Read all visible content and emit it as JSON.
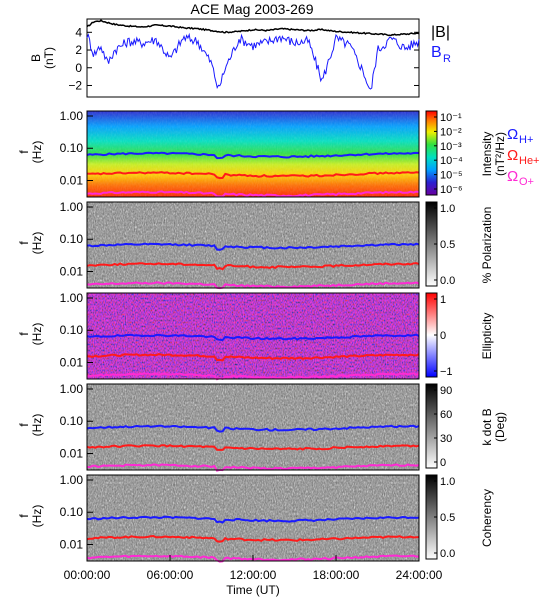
{
  "title": "ACE Mag 2003-269",
  "colors": {
    "total_field": "#000000",
    "radial_field": "#1a1aff",
    "omega_h": "#1a1aff",
    "omega_he": "#ff1a1a",
    "omega_o": "#ff2ad4"
  },
  "chart_data": [
    {
      "type": "line",
      "ylabel": [
        "B",
        "(nT)"
      ],
      "ylim": [
        -3.3,
        5.5
      ],
      "yticks": [
        "4",
        "2",
        "0",
        "−2"
      ],
      "ytick_values": [
        4,
        2,
        0,
        -2
      ],
      "xlim": [
        0,
        24
      ],
      "legend": [
        "|B|",
        "B",
        "R"
      ],
      "series": [
        {
          "name": "|B|",
          "color": "#000000",
          "x": [
            0,
            0.5,
            1,
            1.5,
            2,
            3,
            4,
            5,
            6,
            7,
            8,
            9,
            10,
            11,
            12,
            13,
            14,
            15,
            16,
            17,
            18,
            19,
            20,
            21,
            22,
            23,
            24
          ],
          "values": [
            4.6,
            5.2,
            5.3,
            5.1,
            4.9,
            4.7,
            4.6,
            4.8,
            4.7,
            4.5,
            4.4,
            4.2,
            4.0,
            4.1,
            4.3,
            4.2,
            4.4,
            4.3,
            4.2,
            4.3,
            4.1,
            4.0,
            3.9,
            3.8,
            3.7,
            3.8,
            3.9
          ]
        },
        {
          "name": "B_R",
          "color": "#1a1aff",
          "x": [
            0,
            0.5,
            1,
            1.5,
            2,
            3,
            4,
            5,
            6,
            7,
            8,
            9,
            9.5,
            10,
            11,
            12,
            13,
            14,
            15,
            16,
            17,
            18,
            19,
            20,
            20.5,
            21,
            22,
            23,
            24
          ],
          "values": [
            3.8,
            1.5,
            2.5,
            0.5,
            2.0,
            3.0,
            2.8,
            3.2,
            1.0,
            3.4,
            3.0,
            0.5,
            -2.5,
            0.0,
            3.3,
            2.5,
            2.9,
            3.5,
            2.8,
            3.0,
            -1.5,
            3.3,
            2.5,
            -0.5,
            -2.8,
            2.0,
            3.3,
            2.2,
            3.0
          ]
        }
      ]
    },
    {
      "type": "heatmap",
      "name": "Intensity",
      "ylabel": [
        "f",
        "(Hz)"
      ],
      "yscale": "log",
      "yticks": [
        "1.00",
        "0.10",
        "0.01"
      ],
      "colorbar_label": [
        "Intensity",
        "(nT²/Hz)"
      ],
      "colorbar_ticks": [
        "10⁻¹",
        "10⁻²",
        "10⁻³",
        "10⁻⁴",
        "10⁻⁵",
        "10⁻⁶"
      ],
      "colormap": "rainbow",
      "lines": [
        {
          "name": "ΩH+",
          "value_hz": 0.062,
          "color": "#1a1aff"
        },
        {
          "name": "ΩHe+",
          "value_hz": 0.0155,
          "color": "#ff1a1a"
        },
        {
          "name": "ΩO+",
          "value_hz": 0.0039,
          "color": "#ff2ad4"
        }
      ]
    },
    {
      "type": "heatmap",
      "name": "% Polarization",
      "ylabel": [
        "f",
        "(Hz)"
      ],
      "yticks": [
        "1.00",
        "0.10",
        "0.01"
      ],
      "colorbar_label": [
        "% Polarization"
      ],
      "colorbar_ticks": [
        "1.0",
        "0.5",
        "0.0"
      ],
      "colormap": "gray"
    },
    {
      "type": "heatmap",
      "name": "Ellipticity",
      "ylabel": [
        "f",
        "(Hz)"
      ],
      "yticks": [
        "1.00",
        "0.10",
        "0.01"
      ],
      "colorbar_label": [
        "Ellipticity"
      ],
      "colorbar_ticks": [
        "1",
        "0",
        "−1"
      ],
      "colormap": "blue-white-red"
    },
    {
      "type": "heatmap",
      "name": "k dot B",
      "ylabel": [
        "f",
        "(Hz)"
      ],
      "yticks": [
        "1.00",
        "0.10",
        "0.01"
      ],
      "colorbar_label": [
        "k dot B",
        "(Deg)"
      ],
      "colorbar_ticks": [
        "90",
        "60",
        "30",
        "0"
      ],
      "colormap": "gray"
    },
    {
      "type": "heatmap",
      "name": "Coherency",
      "ylabel": [
        "f",
        "(Hz)"
      ],
      "yticks": [
        "1.00",
        "0.10",
        "0.01"
      ],
      "colorbar_label": [
        "Coherency"
      ],
      "colorbar_ticks": [
        "1.0",
        "0.5",
        "0.0"
      ],
      "colormap": "gray"
    }
  ],
  "legend": {
    "b_total": "|B|",
    "b_r_main": "B",
    "b_r_sub": "R",
    "omega_h": "Ω",
    "omega_h_sub": "H+",
    "omega_he": "Ω",
    "omega_he_sub": "He+",
    "omega_o": "Ω",
    "omega_o_sub": "O+"
  },
  "x_axis": {
    "ticks": [
      "00:00:00",
      "06:00:00",
      "12:00:00",
      "18:00:00",
      "24:00:00"
    ],
    "tick_hours": [
      0,
      6,
      12,
      18,
      24
    ],
    "label": "Time (UT)"
  }
}
